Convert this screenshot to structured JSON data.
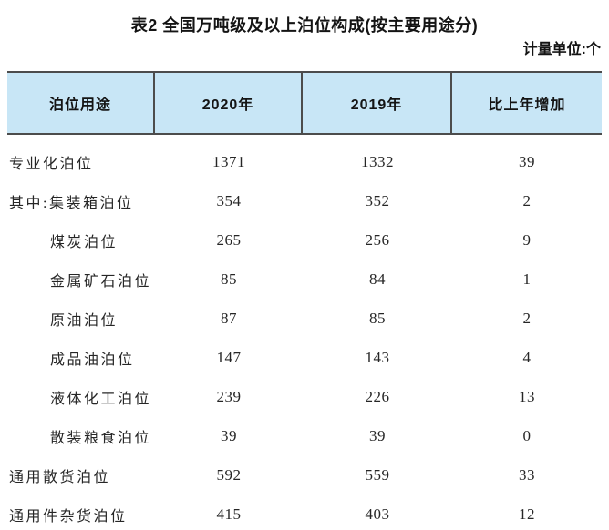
{
  "title": "表2 全国万吨级及以上泊位构成(按主要用途分)",
  "unit_label": "计量单位:个",
  "colors": {
    "header_bg": "#c8e6f6",
    "border": "#4c4c4c",
    "text": "#262626"
  },
  "table": {
    "headers": [
      "泊位用途",
      "2020年",
      "2019年",
      "比上年增加"
    ],
    "rows": [
      {
        "use": "专业化泊位",
        "y2020": "1371",
        "y2019": "1332",
        "increase": "39"
      },
      {
        "use": "其中:集装箱泊位",
        "y2020": "354",
        "y2019": "352",
        "increase": "2"
      },
      {
        "use": "煤炭泊位",
        "y2020": "265",
        "y2019": "256",
        "increase": "9"
      },
      {
        "use": "金属矿石泊位",
        "y2020": "85",
        "y2019": "84",
        "increase": "1"
      },
      {
        "use": "原油泊位",
        "y2020": "87",
        "y2019": "85",
        "increase": "2"
      },
      {
        "use": "成品油泊位",
        "y2020": "147",
        "y2019": "143",
        "increase": "4"
      },
      {
        "use": "液体化工泊位",
        "y2020": "239",
        "y2019": "226",
        "increase": "13"
      },
      {
        "use": "散装粮食泊位",
        "y2020": "39",
        "y2019": "39",
        "increase": "0"
      },
      {
        "use": "通用散货泊位",
        "y2020": "592",
        "y2019": "559",
        "increase": "33"
      },
      {
        "use": "通用件杂货泊位",
        "y2020": "415",
        "y2019": "403",
        "increase": "12"
      }
    ]
  }
}
